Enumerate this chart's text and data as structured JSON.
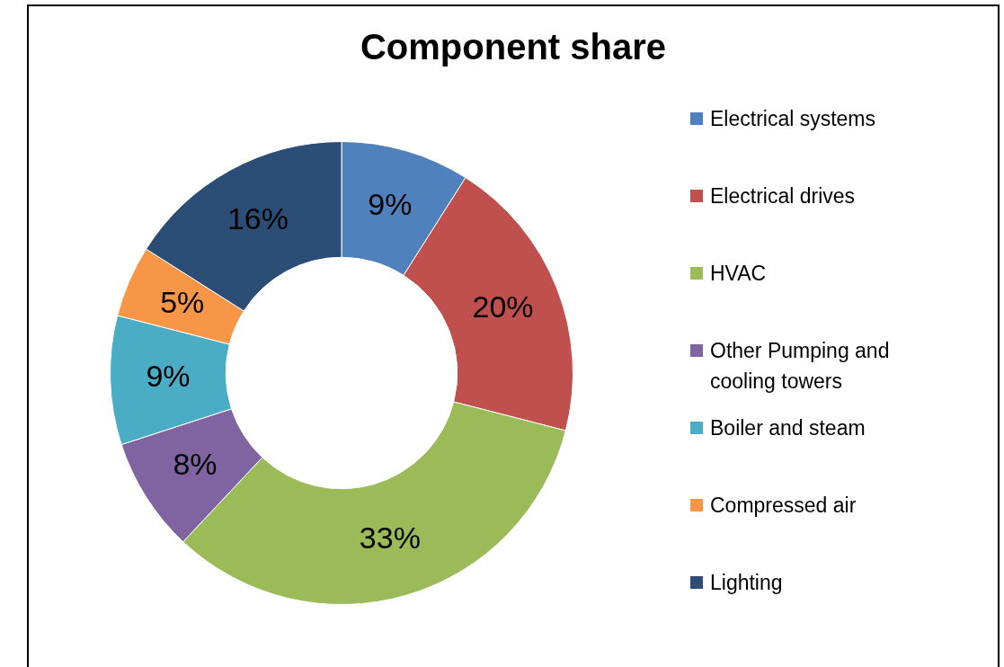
{
  "chart_data": {
    "type": "donut",
    "title": "Component share",
    "categories": [
      "Electrical systems",
      "Electrical drives",
      "HVAC",
      "Other Pumping and cooling towers",
      "Boiler and steam",
      "Compressed air",
      "Lighting"
    ],
    "values": [
      9,
      20,
      33,
      8,
      9,
      5,
      16
    ],
    "colors": [
      "#4f81bd",
      "#c0504d",
      "#9bbb59",
      "#8064a2",
      "#4bacc6",
      "#f79646",
      "#2c4d75"
    ],
    "value_labels": [
      "9%",
      "20%",
      "33%",
      "8%",
      "9%",
      "5%",
      "16%"
    ],
    "legend": "right"
  }
}
